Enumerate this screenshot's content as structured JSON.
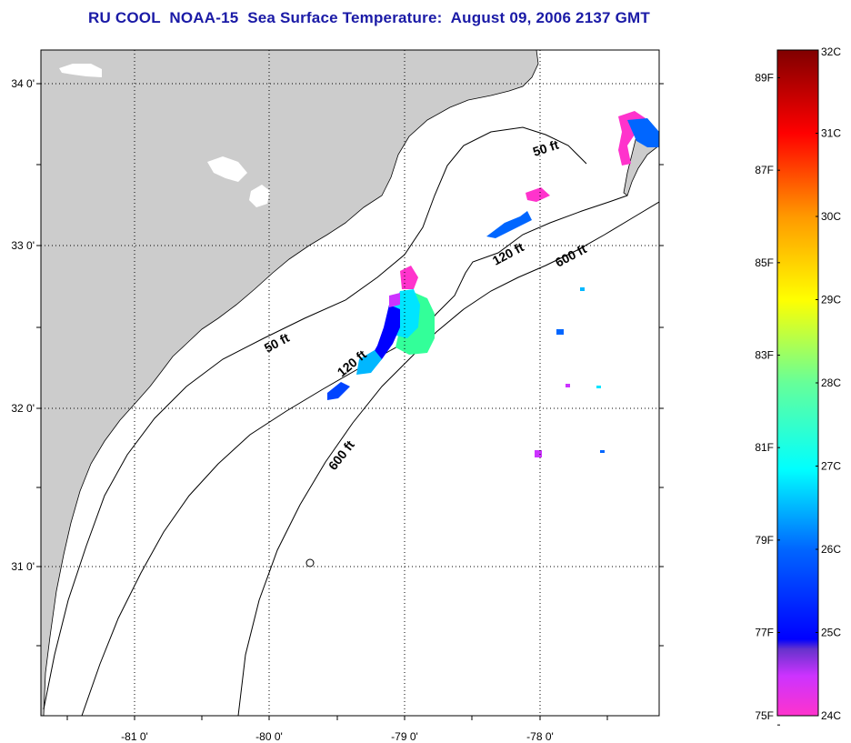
{
  "title": "RU COOL  NOAA-15  Sea Surface Temperature:  August 09, 2006 2137 GMT",
  "map": {
    "lat_labels": [
      "34 0'",
      "33 0'",
      "32 0'",
      "31 0'"
    ],
    "lon_labels": [
      "-81 0'",
      "-80 0'",
      "-79 0'",
      "-78 0'"
    ],
    "depth_labels": [
      "50 ft",
      "120 ft",
      "600 ft",
      "50 ft",
      "120 ft",
      "600 ft"
    ],
    "land_color": "#cccccc",
    "water_color": "#ffffff"
  },
  "colorbar": {
    "fahrenheit_labels": [
      "89F",
      "87F",
      "85F",
      "83F",
      "81F",
      "79F",
      "77F",
      "75F"
    ],
    "celsius_labels": [
      "32C",
      "31C",
      "30C",
      "29C",
      "28C",
      "27C",
      "26C",
      "25C",
      "24C"
    ],
    "range_c": [
      24,
      32
    ]
  }
}
